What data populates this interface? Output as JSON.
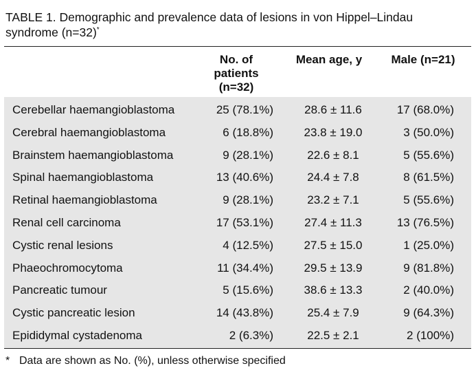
{
  "caption": {
    "text": "TABLE 1. Demographic and prevalence data of lesions in von Hippel–Lindau syndrome (n=32)",
    "marker": "*"
  },
  "table": {
    "headers": {
      "lesion": "",
      "patients": "No. of patients (n=32)",
      "age": "Mean age, y",
      "male": "Male (n=21)"
    },
    "rows": [
      {
        "lesion": "Cerebellar haemangioblastoma",
        "patients": "25 (78.1%)",
        "age": "28.6 ± 11.6",
        "male": "17 (68.0%)"
      },
      {
        "lesion": "Cerebral haemangioblastoma",
        "patients": "6 (18.8%)",
        "age": "23.8 ± 19.0",
        "male": "3 (50.0%)"
      },
      {
        "lesion": "Brainstem haemangioblastoma",
        "patients": "9 (28.1%)",
        "age": "22.6 ± 8.1",
        "male": "5 (55.6%)"
      },
      {
        "lesion": "Spinal haemangioblastoma",
        "patients": "13 (40.6%)",
        "age": "24.4 ± 7.8",
        "male": "8 (61.5%)"
      },
      {
        "lesion": "Retinal haemangioblastoma",
        "patients": "9 (28.1%)",
        "age": "23.2 ± 7.1",
        "male": "5 (55.6%)"
      },
      {
        "lesion": "Renal cell carcinoma",
        "patients": "17 (53.1%)",
        "age": "27.4 ± 11.3",
        "male": "13 (76.5%)"
      },
      {
        "lesion": "Cystic renal lesions",
        "patients": "4 (12.5%)",
        "age": "27.5 ± 15.0",
        "male": "1 (25.0%)"
      },
      {
        "lesion": "Phaeochromocytoma",
        "patients": "11 (34.4%)",
        "age": "29.5 ± 13.9",
        "male": "9 (81.8%)"
      },
      {
        "lesion": "Pancreatic tumour",
        "patients": "5 (15.6%)",
        "age": "38.6 ± 13.3",
        "male": "2 (40.0%)"
      },
      {
        "lesion": "Cystic pancreatic lesion",
        "patients": "14 (43.8%)",
        "age": "25.4 ± 7.9",
        "male": "9 (64.3%)"
      },
      {
        "lesion": "Epididymal cystadenoma",
        "patients": "2 (6.3%)",
        "age": "22.5 ± 2.1",
        "male": "2 (100%)"
      }
    ]
  },
  "footnote": {
    "marker": "*",
    "text": "Data are shown as No. (%), unless otherwise specified"
  }
}
